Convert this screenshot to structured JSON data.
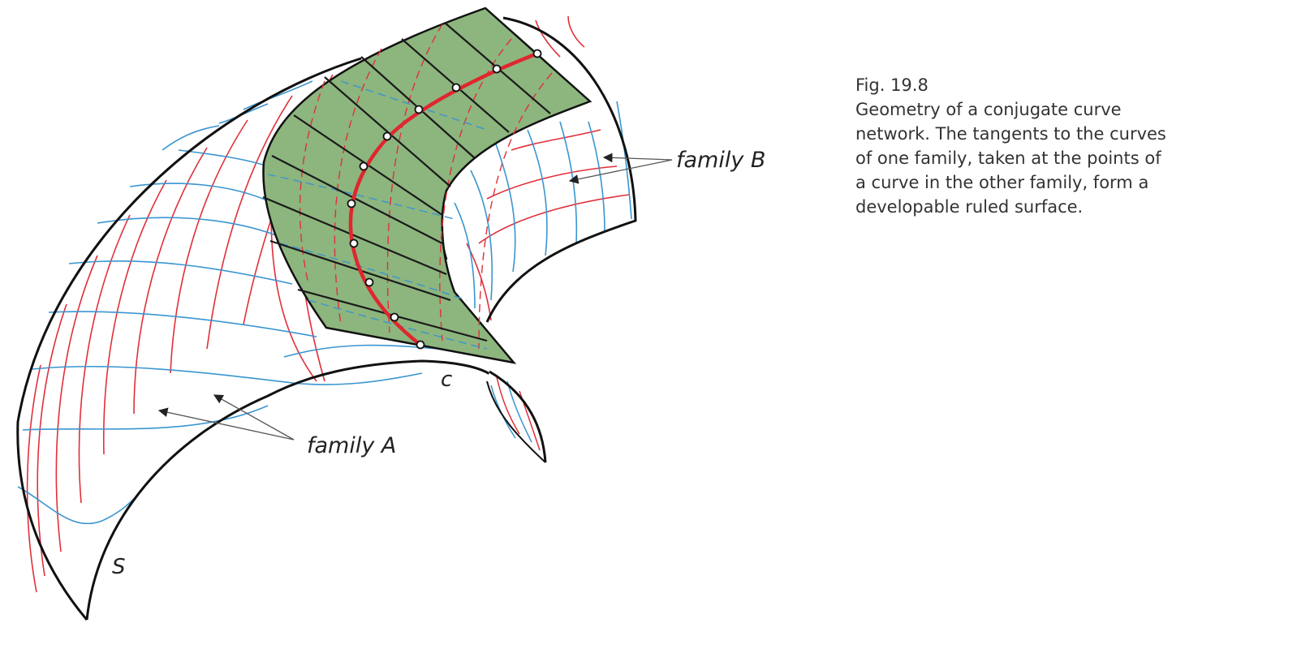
{
  "figure": {
    "labels": {
      "family_a": "family A",
      "family_b": "family B",
      "curve_c": "c",
      "surface_s": "S"
    },
    "colors": {
      "outline": "#111111",
      "family_red": "#e0303a",
      "family_blue": "#3a95d0",
      "ruled_surface_fill": "#8db57e",
      "ruling_line": "#1a1a1a",
      "curve_c": "#e0262e",
      "arrow": "#555555"
    }
  },
  "caption": {
    "number": "Fig. 19.8",
    "lines": [
      "Geometry of a conjugate curve",
      "network. The tangents to the curves",
      "of one family, taken at the points of",
      "a curve in the other family, form a",
      "developable ruled surface."
    ]
  }
}
